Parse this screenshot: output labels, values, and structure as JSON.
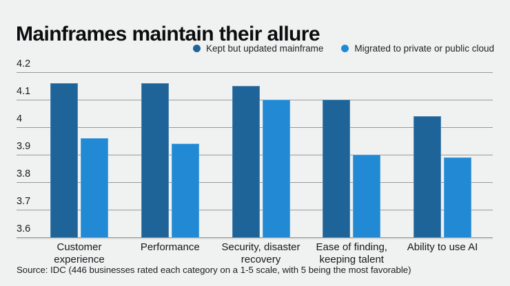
{
  "title": "Mainframes maintain their allure",
  "source_note": "Source: IDC (446 businesses rated each category on a 1-5 scale, with 5 being the most favorable)",
  "colors": {
    "background": "#f0f1f1",
    "gridline": "#97999a",
    "series_kept": "#1e6498",
    "series_migrated": "#2289d4"
  },
  "chart_data": {
    "type": "bar",
    "title": "Mainframes maintain their allure",
    "categories": [
      "Customer\nexperience",
      "Performance",
      "Security, disaster\nrecovery",
      "Ease of finding,\nkeeping talent",
      "Ability to use AI"
    ],
    "series": [
      {
        "name": "Kept but updated mainframe",
        "color": "#1e6498",
        "values": [
          4.16,
          4.16,
          4.15,
          4.1,
          4.04
        ]
      },
      {
        "name": "Migrated to private or public cloud",
        "color": "#2289d4",
        "values": [
          3.96,
          3.94,
          4.1,
          3.9,
          3.89
        ]
      }
    ],
    "ylabel": "",
    "xlabel": "",
    "ylim": [
      3.6,
      4.2
    ],
    "yticks": [
      "4.2",
      "4.1",
      "4",
      "3.9",
      "3.8",
      "3.7",
      "3.6"
    ],
    "ytick_values": [
      4.2,
      4.1,
      4.0,
      3.9,
      3.8,
      3.7,
      3.6
    ],
    "grid": "horizontal",
    "legend_position": "top-right"
  }
}
